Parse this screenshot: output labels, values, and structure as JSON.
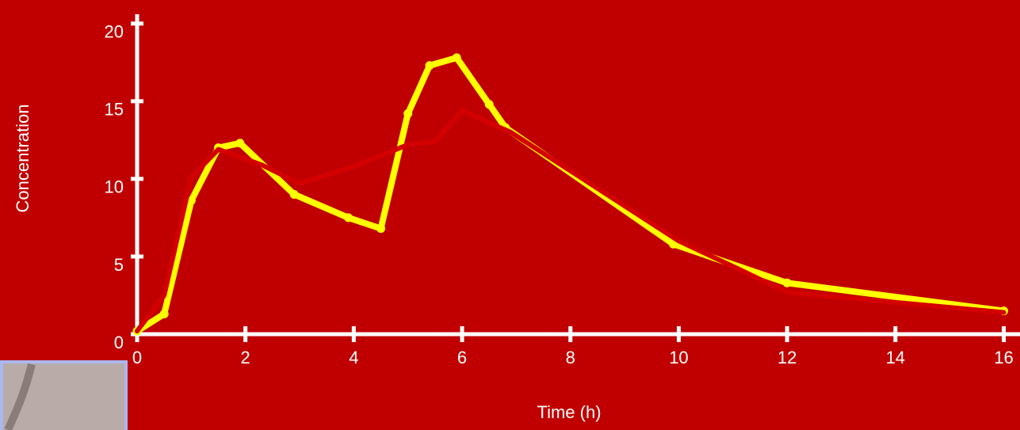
{
  "chart_data": {
    "type": "line",
    "xlabel": "Time (h)",
    "ylabel": "Concentration",
    "xlim": [
      0,
      16.3
    ],
    "ylim": [
      0,
      20.6
    ],
    "xticks": [
      0,
      2,
      4,
      6,
      8,
      10,
      12,
      14,
      16
    ],
    "yticks": [
      0,
      5,
      10,
      15,
      20
    ],
    "series": [
      {
        "color": "#ffff00",
        "markers": true,
        "x": [
          0,
          0.5,
          1,
          1.5,
          1.9,
          2.9,
          3.9,
          4.5,
          5,
          5.4,
          5.9,
          6.5,
          6.8,
          9.9,
          12,
          16
        ],
        "values": [
          0.2,
          1.3,
          8.6,
          12.0,
          12.3,
          9.0,
          7.5,
          6.8,
          14.2,
          17.3,
          17.8,
          14.8,
          13.3,
          5.8,
          3.3,
          1.5
        ]
      },
      {
        "color": "#d40000",
        "markers": false,
        "x": [
          0,
          0.5,
          1,
          1.5,
          2.3,
          3,
          4,
          5,
          5.5,
          6,
          6.9,
          10,
          11.1,
          12,
          16
        ],
        "values": [
          0.2,
          2.5,
          10.1,
          11.9,
          10.9,
          9.7,
          10.8,
          12.2,
          12.4,
          14.4,
          13.0,
          6.0,
          4.2,
          2.7,
          1.4
        ]
      }
    ]
  }
}
